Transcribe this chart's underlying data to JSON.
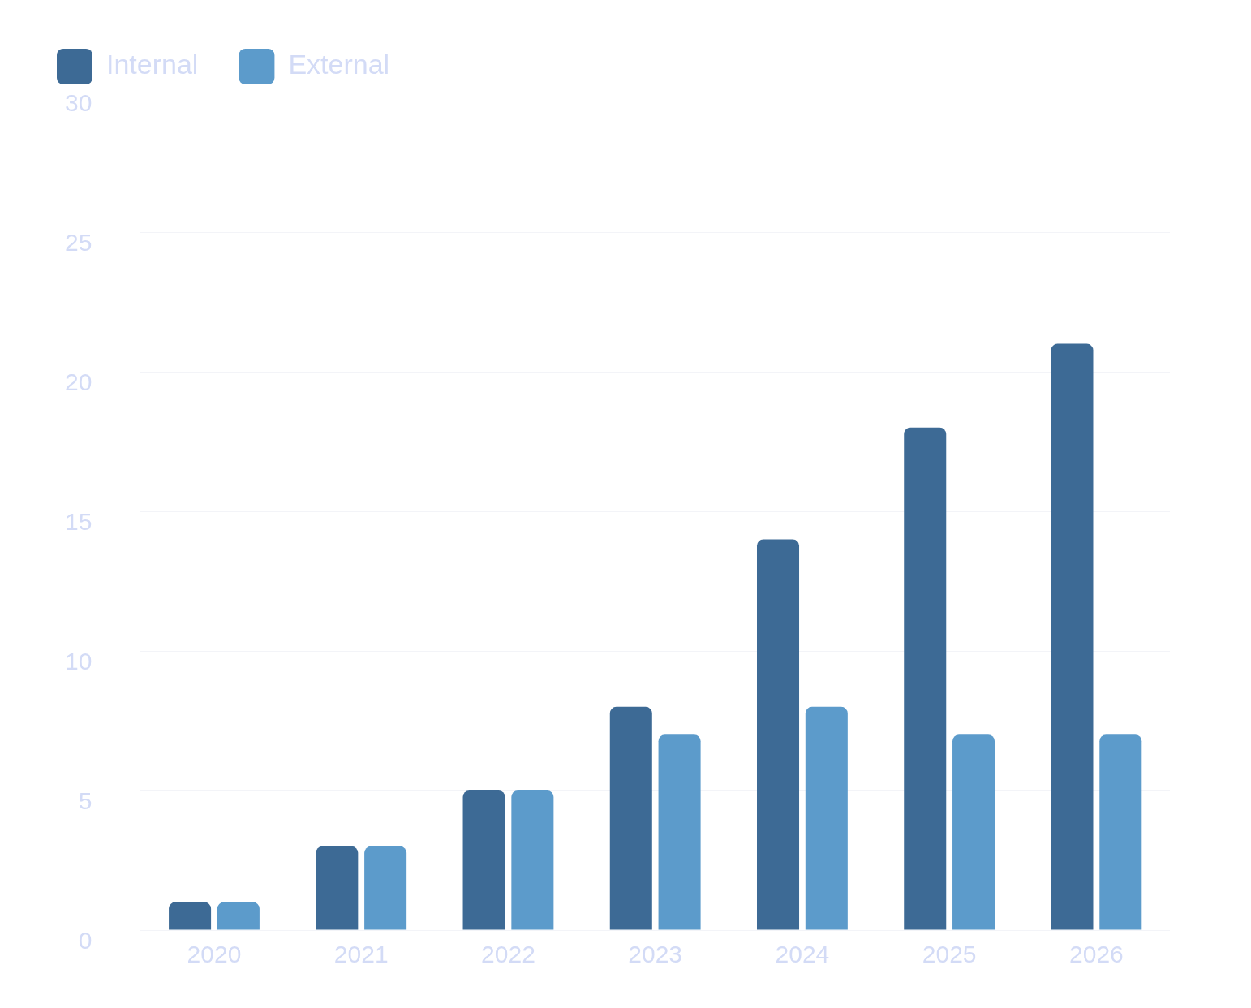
{
  "chart_data": {
    "type": "bar",
    "categories": [
      "2020",
      "2021",
      "2022",
      "2023",
      "2024",
      "2025",
      "2026"
    ],
    "series": [
      {
        "name": "Internal",
        "color": "#3d6a95",
        "values": [
          1,
          3,
          5,
          8,
          14,
          18,
          21
        ]
      },
      {
        "name": "External",
        "color": "#5c9bcb",
        "values": [
          1,
          3,
          5,
          7,
          8,
          7,
          7
        ]
      }
    ],
    "ylim": [
      0,
      30
    ],
    "yticks": [
      0,
      5,
      10,
      15,
      20,
      25,
      30
    ],
    "grid": "y",
    "legend": "top left"
  }
}
